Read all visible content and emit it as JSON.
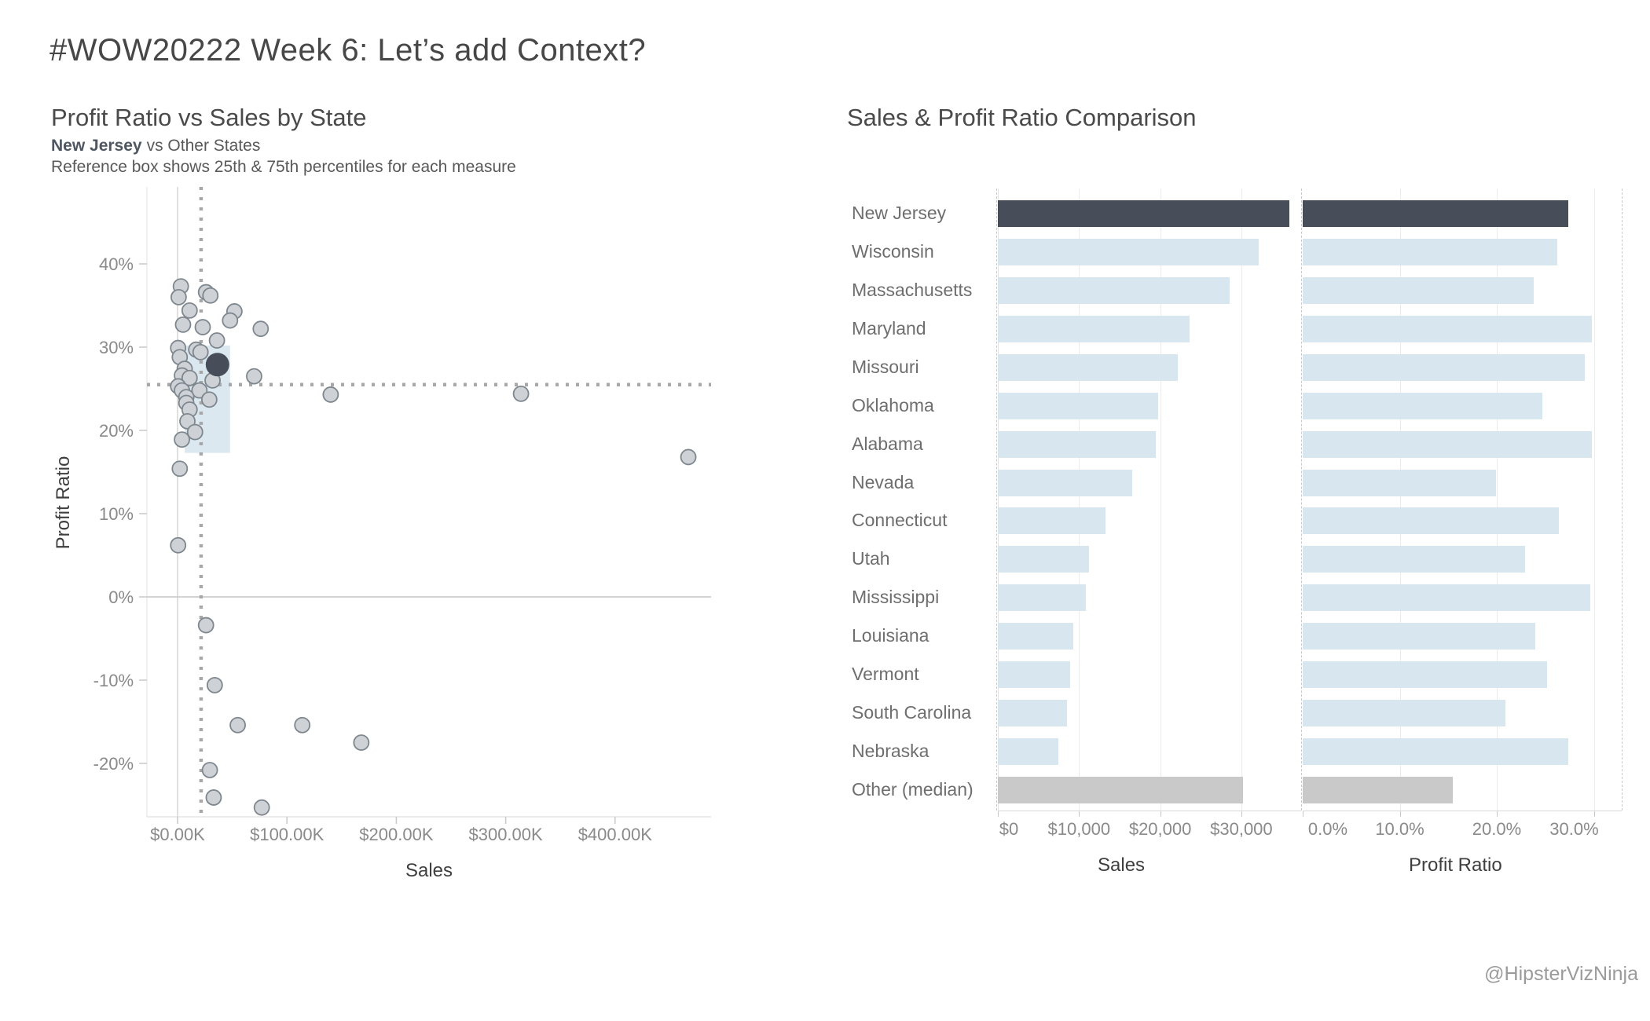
{
  "dashboard": {
    "title": "#WOW20222 Week 6: Let’s add Context?",
    "attribution": "@HipsterVizNinja",
    "colors": {
      "accent_dark": "#474e59",
      "bar_light": "#d8e6ef",
      "bar_other_gray": "#c9c9c9",
      "point_fill": "#ced2d6",
      "point_stroke": "#7e868e",
      "reference_box_fill": "#dbe8f0",
      "reference_line": "#a8a8a8"
    }
  },
  "chart_data": [
    {
      "type": "scatter",
      "title": "Profit Ratio vs Sales by State",
      "subtitle_bold": "New Jersey",
      "subtitle_rest": "vs Other States",
      "note": "Reference box shows 25th & 75th percentiles for each measure",
      "xlabel": "Sales",
      "ylabel": "Profit Ratio",
      "x_unit": "sales_thousands_usd",
      "y_unit": "profit_ratio_percent",
      "xlim": [
        -28,
        488
      ],
      "ylim": [
        -26.4,
        49.2
      ],
      "grid": false,
      "x_ticks": [
        {
          "value": 0,
          "label": "$0.00K"
        },
        {
          "value": 100,
          "label": "$100.00K"
        },
        {
          "value": 200,
          "label": "$200.00K"
        },
        {
          "value": 300,
          "label": "$300.00K"
        },
        {
          "value": 400,
          "label": "$400.00K"
        }
      ],
      "y_ticks": [
        {
          "value": 40,
          "label": "40%"
        },
        {
          "value": 30,
          "label": "30%"
        },
        {
          "value": 20,
          "label": "20%"
        },
        {
          "value": 10,
          "label": "10%"
        },
        {
          "value": 0,
          "label": "0%"
        },
        {
          "value": -10,
          "label": "-10%"
        },
        {
          "value": -20,
          "label": "-20%"
        }
      ],
      "reference_lines": {
        "median_sales_k": 21.5,
        "median_profit_ratio_pct": 25.5
      },
      "reference_box": {
        "sales_k": [
          6.5,
          48
        ],
        "profit_pct": [
          17.3,
          30.2
        ]
      },
      "highlight": {
        "name": "New Jersey",
        "sales_k": 36.5,
        "profit_pct": 27.9
      },
      "points_sales_k_profit_pct": [
        [
          3,
          37.3
        ],
        [
          1,
          36.0
        ],
        [
          26,
          36.6
        ],
        [
          30,
          36.2
        ],
        [
          11,
          34.4
        ],
        [
          52,
          34.3
        ],
        [
          48,
          33.2
        ],
        [
          5,
          32.7
        ],
        [
          23,
          32.4
        ],
        [
          76,
          32.2
        ],
        [
          36,
          30.8
        ],
        [
          0.5,
          29.9
        ],
        [
          17,
          29.7
        ],
        [
          21,
          29.4
        ],
        [
          2,
          28.8
        ],
        [
          6.5,
          27.4
        ],
        [
          4,
          26.6
        ],
        [
          11,
          26.3
        ],
        [
          32,
          26.0
        ],
        [
          70,
          26.5
        ],
        [
          0.5,
          25.3
        ],
        [
          4,
          24.8
        ],
        [
          20,
          24.8
        ],
        [
          8,
          24.0
        ],
        [
          29,
          23.7
        ],
        [
          8,
          23.3
        ],
        [
          11,
          22.5
        ],
        [
          140,
          24.3
        ],
        [
          314,
          24.4
        ],
        [
          9,
          21.1
        ],
        [
          16,
          19.8
        ],
        [
          4,
          18.9
        ],
        [
          2,
          15.4
        ],
        [
          467,
          16.8
        ],
        [
          0.5,
          6.2
        ],
        [
          26,
          -3.4
        ],
        [
          34,
          -10.6
        ],
        [
          55,
          -15.4
        ],
        [
          114,
          -15.4
        ],
        [
          168,
          -17.5
        ],
        [
          29.5,
          -20.8
        ],
        [
          33,
          -24.1
        ],
        [
          77,
          -25.3
        ]
      ]
    },
    {
      "type": "bar",
      "orientation": "horizontal",
      "title": "Sales & Profit Ratio Comparison",
      "categories": [
        "New Jersey",
        "Wisconsin",
        "Massachusetts",
        "Maryland",
        "Missouri",
        "Oklahoma",
        "Alabama",
        "Nevada",
        "Connecticut",
        "Utah",
        "Mississippi",
        "Louisiana",
        "Vermont",
        "South Carolina",
        "Nebraska",
        "Other (median)"
      ],
      "highlight_index": 0,
      "other_median_index": 15,
      "series": [
        {
          "name": "Sales",
          "unit": "usd",
          "values": [
            35900,
            32100,
            28600,
            23600,
            22200,
            19700,
            19500,
            16600,
            13300,
            11200,
            10800,
            9300,
            8900,
            8500,
            7500,
            30200
          ],
          "ticks": [
            {
              "value": 0,
              "label": "$0"
            },
            {
              "value": 10000,
              "label": "$10,000"
            },
            {
              "value": 20000,
              "label": "$20,000"
            },
            {
              "value": 30000,
              "label": "$30,000"
            }
          ],
          "sorted": "descending"
        },
        {
          "name": "Profit Ratio",
          "unit": "percent",
          "values": [
            27.4,
            26.2,
            23.8,
            29.8,
            29.1,
            24.7,
            29.8,
            19.9,
            26.4,
            22.9,
            29.6,
            24.0,
            25.2,
            20.9,
            27.4,
            15.5
          ],
          "ticks": [
            {
              "value": 0,
              "label": "0.0%"
            },
            {
              "value": 10,
              "label": "10.0%"
            },
            {
              "value": 20,
              "label": "20.0%"
            },
            {
              "value": 30,
              "label": "30.0%"
            }
          ]
        }
      ]
    }
  ]
}
